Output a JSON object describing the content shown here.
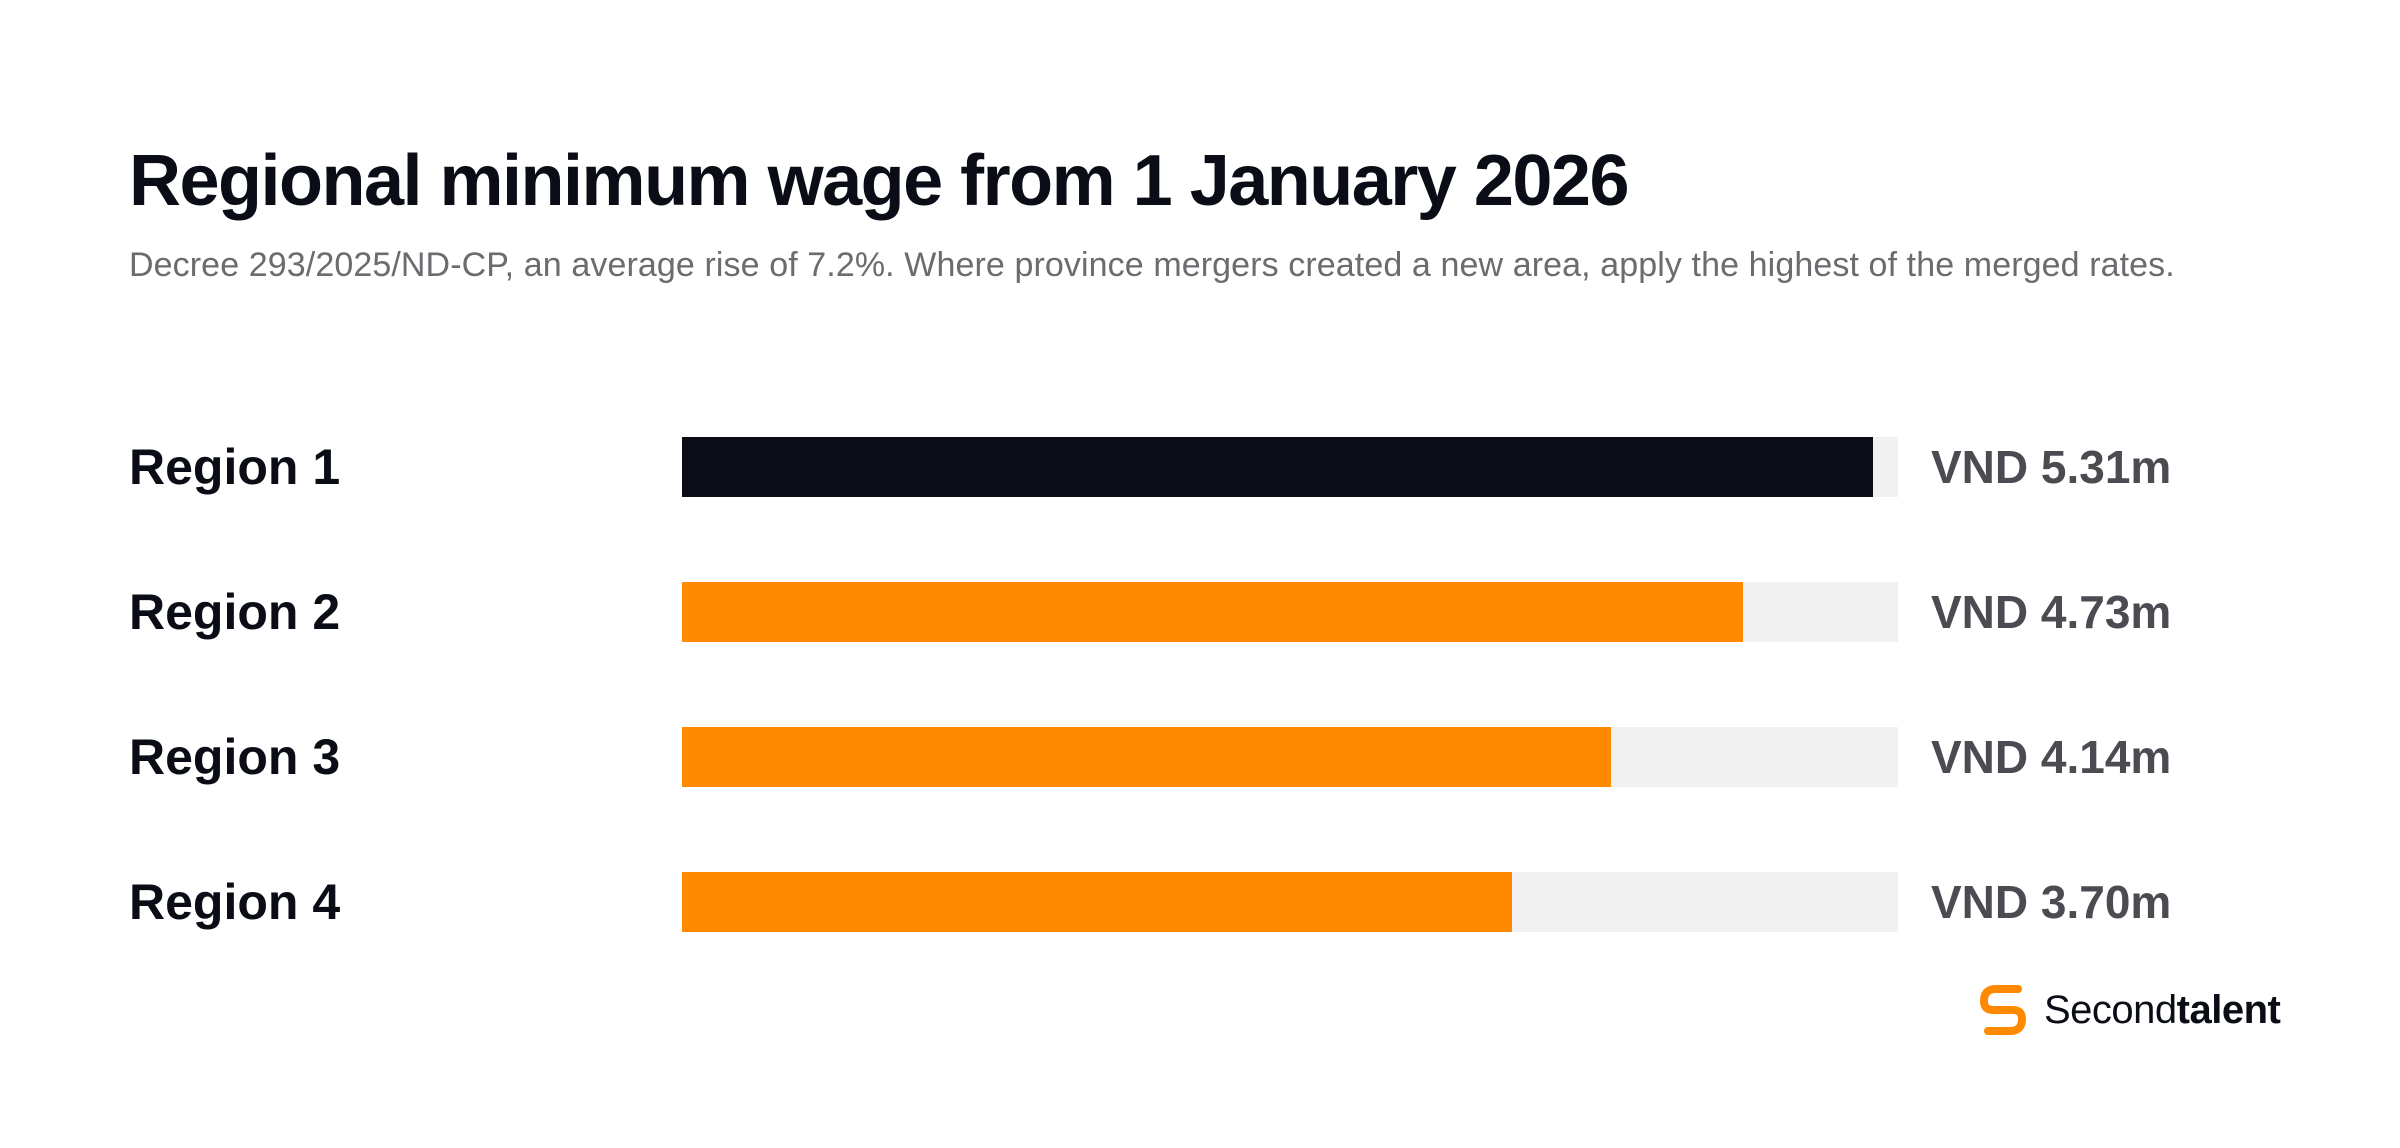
{
  "title": "Regional minimum wage from 1 January 2026",
  "subtitle": "Decree 293/2025/ND-CP, an average rise of 7.2%. Where province mergers created a new area, apply the highest of the merged rates.",
  "brand": {
    "name_light": "Second",
    "name_bold": "talent",
    "logo_icon": "secondtalent-logo-icon"
  },
  "colors": {
    "highlight": "#0a0d16",
    "accent": "#ff8a00",
    "track": "#f0f1f0"
  },
  "chart_data": {
    "type": "bar",
    "orientation": "horizontal",
    "categories": [
      "Region 1",
      "Region 2",
      "Region 3",
      "Region 4"
    ],
    "values": [
      5.31,
      4.73,
      4.14,
      3.7
    ],
    "value_labels": [
      "VND 5.31m",
      "VND 4.73m",
      "VND 4.14m",
      "VND 3.70m"
    ],
    "unit": "VND million",
    "xlim": [
      0,
      5.42
    ],
    "grid": false,
    "legend": "none"
  }
}
